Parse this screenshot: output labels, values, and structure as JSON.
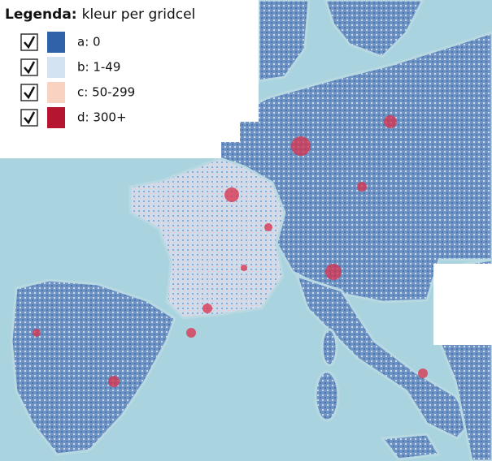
{
  "legend": {
    "title": "Legenda:",
    "subtitle": "kleur per gridcel",
    "items": [
      {
        "label": "a: 0",
        "color": "#2f62a8"
      },
      {
        "label": "b: 1-49",
        "color": "#d4e3f1"
      },
      {
        "label": "c: 50-299",
        "color": "#f9d2c2"
      },
      {
        "label": "d: 300+",
        "color": "#b5152e"
      }
    ]
  }
}
